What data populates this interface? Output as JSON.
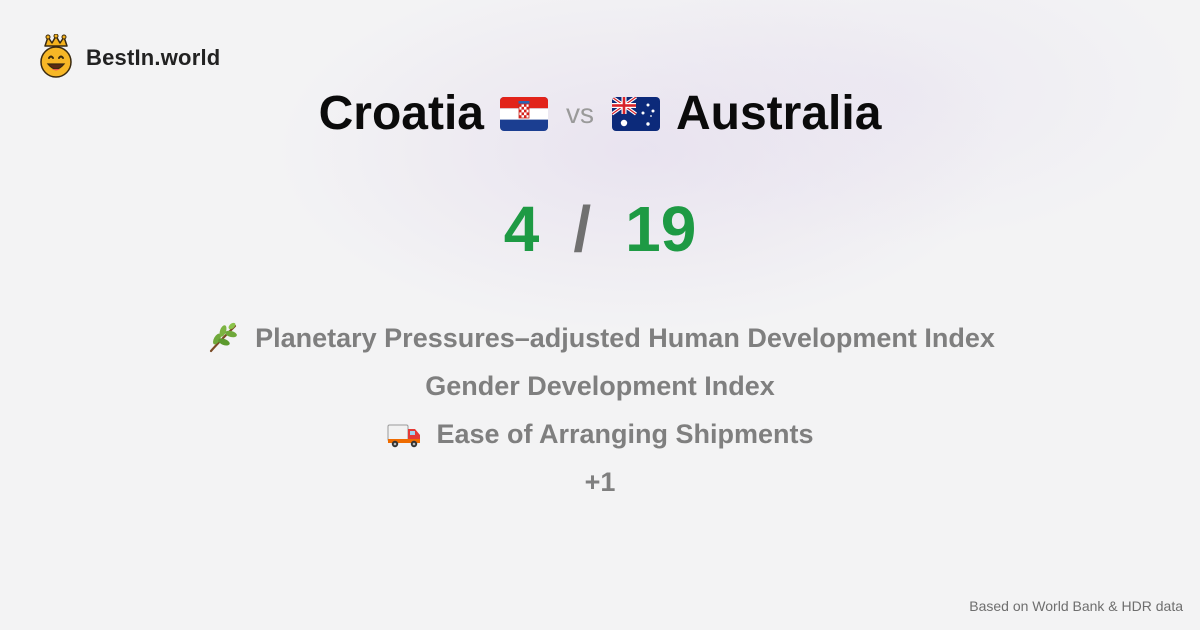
{
  "brand": {
    "name": "BestIn.world",
    "logo_icon": "crowned-smiley-icon"
  },
  "comparison": {
    "country_a": {
      "name": "Croatia",
      "flag_icon": "croatia-flag-icon"
    },
    "vs_label": "vs",
    "country_b": {
      "name": "Australia",
      "flag_icon": "australia-flag-icon"
    }
  },
  "score": {
    "a": "4",
    "separator": "/",
    "b": "19"
  },
  "metrics": [
    {
      "label": "Planetary Pressures–adjusted Human Development Index",
      "icon": "plant-icon"
    },
    {
      "label": "Gender Development Index",
      "icon": ""
    },
    {
      "label": "Ease of Arranging Shipments",
      "icon": "delivery-truck-icon"
    }
  ],
  "more_label": "+1",
  "footer": "Based on World Bank & HDR data",
  "colors": {
    "score": "#1e9a44",
    "metric_text": "#7f7f7f",
    "background": "#f3f3f4"
  }
}
